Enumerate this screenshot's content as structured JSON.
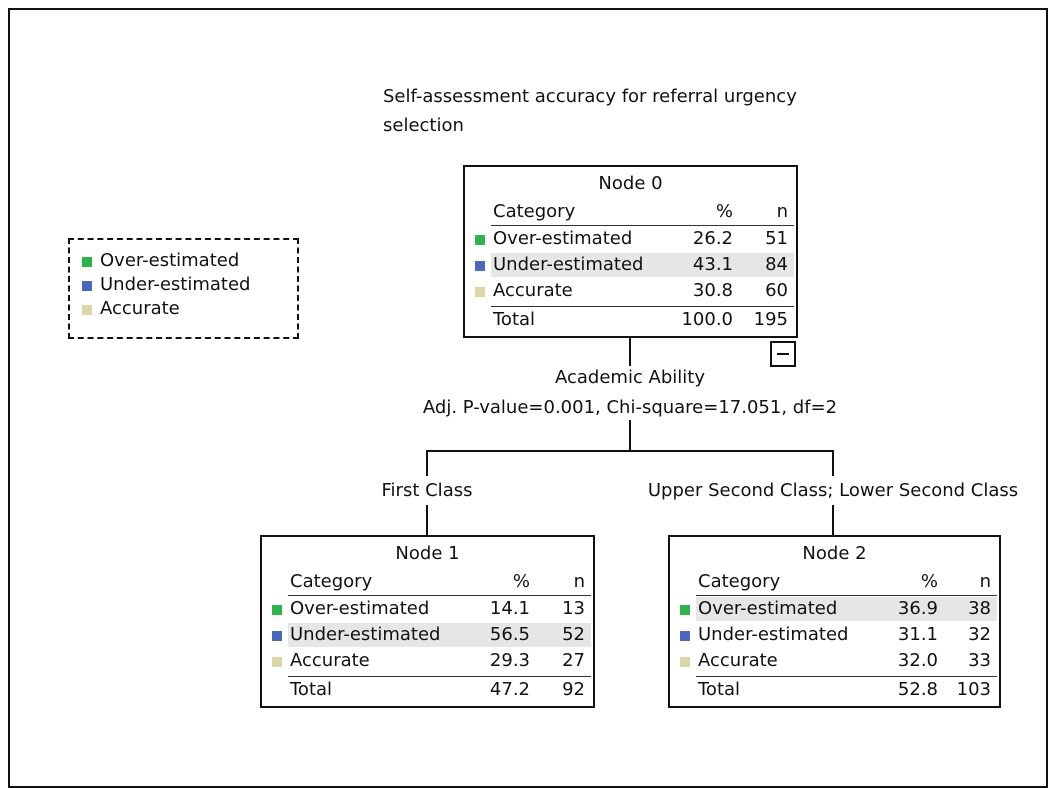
{
  "title": "Self-assessment accuracy for referral urgency selection",
  "legend": [
    {
      "label": "Over-estimated",
      "color": "#2fb24c"
    },
    {
      "label": "Under-estimated",
      "color": "#4a69bd"
    },
    {
      "label": "Accurate",
      "color": "#dcd5a6"
    }
  ],
  "nodes": [
    {
      "label": "Node 0",
      "header": [
        "Category",
        "%",
        "n"
      ],
      "highlight": 1,
      "rows": [
        [
          "Over-estimated",
          "26.2",
          "51"
        ],
        [
          "Under-estimated",
          "43.1",
          "84"
        ],
        [
          "Accurate",
          "30.8",
          "60"
        ]
      ],
      "total": [
        "Total",
        "100.0",
        "195"
      ]
    },
    {
      "label": "Node 1",
      "header": [
        "Category",
        "%",
        "n"
      ],
      "highlight": 1,
      "rows": [
        [
          "Over-estimated",
          "14.1",
          "13"
        ],
        [
          "Under-estimated",
          "56.5",
          "52"
        ],
        [
          "Accurate",
          "29.3",
          "27"
        ]
      ],
      "total": [
        "Total",
        "47.2",
        "92"
      ]
    },
    {
      "label": "Node 2",
      "header": [
        "Category",
        "%",
        "n"
      ],
      "highlight": 0,
      "rows": [
        [
          "Over-estimated",
          "36.9",
          "38"
        ],
        [
          "Under-estimated",
          "31.1",
          "32"
        ],
        [
          "Accurate",
          "32.0",
          "33"
        ]
      ],
      "total": [
        "Total",
        "52.8",
        "103"
      ]
    }
  ],
  "split": {
    "variable": "Academic Ability",
    "stats": "Adj. P-value=0.001, Chi-square=17.051, df=2",
    "branches": [
      "First Class",
      "Upper Second Class; Lower Second Class"
    ]
  }
}
